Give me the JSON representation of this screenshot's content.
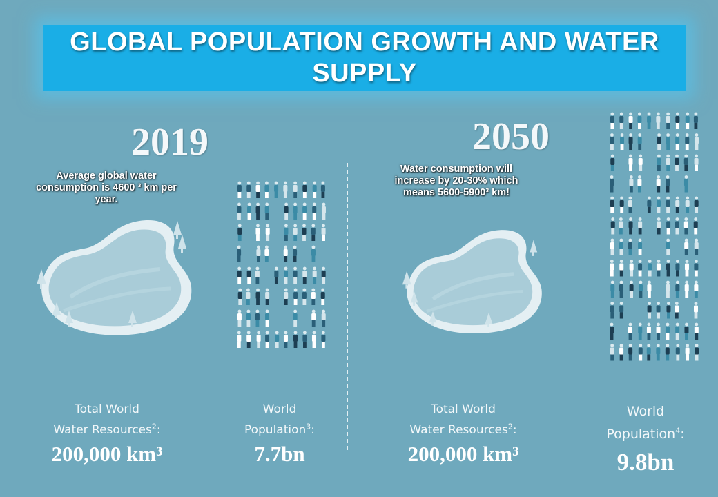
{
  "title": "GLOBAL POPULATION GROWTH AND WATER SUPPLY",
  "panels": [
    {
      "year": "2019",
      "note": "Average global water consumption is 4600 ³ km per year.",
      "resources_label_1": "Total World",
      "resources_label_2": "Water Resources",
      "resources_sup": "2",
      "resources_value": "200,000 km³",
      "population_label_1": "World",
      "population_label_2": "Population",
      "population_sup": "3",
      "population_value": "7.7bn"
    },
    {
      "year": "2050",
      "note": "Water consumption will increase by 20-30% which means 5600-5900³ km!",
      "resources_label_1": "Total World",
      "resources_label_2": "Water Resources",
      "resources_sup": "2",
      "resources_value": "200,000 km³",
      "population_label_1": "World",
      "population_label_2": "Population",
      "population_sup": "4",
      "population_value": "9.8bn"
    }
  ],
  "colors": {
    "background": "#6fa9bd",
    "banner": "#1aaee6",
    "lake_water": "#a9ccd8",
    "lake_rim": "#e4eff3",
    "people": [
      "#2a5f78",
      "#ffffff",
      "#3b8ba6",
      "#1d3e52",
      "#d6e6ec"
    ]
  },
  "icons": [
    "lake-illustration",
    "tree-icon",
    "crowd-illustration"
  ]
}
